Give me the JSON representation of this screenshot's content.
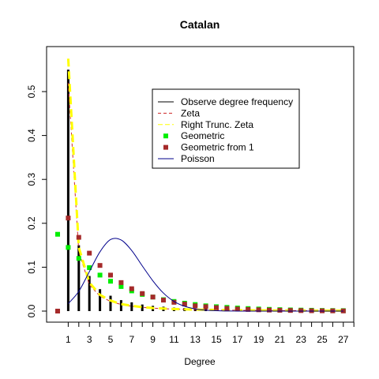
{
  "chart_data": {
    "type": "line",
    "title": "Catalan",
    "xlabel": "Degree",
    "ylabel": "",
    "xlim": [
      -1,
      28
    ],
    "ylim": [
      0,
      0.58
    ],
    "x_ticks": [
      1,
      2,
      3,
      4,
      5,
      6,
      7,
      8,
      9,
      10,
      11,
      12,
      13,
      14,
      15,
      16,
      17,
      18,
      19,
      20,
      21,
      22,
      23,
      24,
      25,
      26,
      27,
      28
    ],
    "x_tick_labels": [
      "1",
      "3",
      "5",
      "7",
      "9",
      "11",
      "13",
      "15",
      "17",
      "19",
      "21",
      "23",
      "25",
      "27"
    ],
    "y_ticks": [
      0.0,
      0.1,
      0.2,
      0.3,
      0.4,
      0.5
    ],
    "y_tick_labels": [
      "0.0",
      "0.1",
      "0.2",
      "0.3",
      "0.4",
      "0.5"
    ],
    "legend_position": "top-right",
    "legend": [
      "Observe degree frequency",
      "Zeta",
      "Right Trunc. Zeta",
      "Geometric",
      "Geometric from 1",
      "Poisson"
    ],
    "series": [
      {
        "name": "Observe degree frequency",
        "style": "histogram",
        "color": "#000000",
        "x": [
          1,
          2,
          3,
          4,
          5,
          6,
          7,
          8,
          9,
          10,
          11,
          12,
          13,
          14,
          15,
          16,
          17,
          18,
          19,
          20,
          21,
          22,
          23,
          24,
          25,
          26,
          27
        ],
        "values": [
          0.55,
          0.15,
          0.08,
          0.05,
          0.035,
          0.025,
          0.02,
          0.015,
          0.012,
          0.01,
          0.008,
          0.007,
          0.006,
          0.005,
          0.004,
          0.004,
          0.003,
          0.003,
          0.003,
          0.002,
          0.002,
          0.002,
          0.002,
          0.002,
          0.001,
          0.001,
          0.001
        ]
      },
      {
        "name": "Zeta",
        "style": "dashed-line",
        "color": "#cd2626",
        "x": [
          1,
          2,
          3,
          4,
          5,
          6,
          7,
          8,
          9,
          10,
          11,
          12,
          13,
          14,
          15,
          16,
          17,
          18,
          19,
          20,
          21,
          22,
          23,
          24,
          25,
          26,
          27
        ],
        "values": [
          0.52,
          0.135,
          0.06,
          0.034,
          0.022,
          0.015,
          0.011,
          0.0085,
          0.0067,
          0.0054,
          0.0045,
          0.0038,
          0.0032,
          0.0028,
          0.0024,
          0.0021,
          0.0019,
          0.0017,
          0.0015,
          0.0014,
          0.0012,
          0.0011,
          0.001,
          0.001,
          0.0009,
          0.0008,
          0.0008
        ]
      },
      {
        "name": "Right Trunc. Zeta",
        "style": "thick-dashed-line",
        "color": "#ffff00",
        "x": [
          1,
          2,
          3,
          4,
          5,
          6,
          7,
          8,
          9,
          10,
          11,
          12,
          13,
          14,
          15,
          16,
          17,
          18,
          19,
          20,
          21,
          22,
          23,
          24,
          25,
          26,
          27
        ],
        "values": [
          0.575,
          0.145,
          0.065,
          0.037,
          0.024,
          0.016,
          0.012,
          0.009,
          0.007,
          0.0058,
          0.0048,
          0.004,
          0.0034,
          0.003,
          0.0026,
          0.0023,
          0.002,
          0.0018,
          0.0016,
          0.0015,
          0.0013,
          0.0012,
          0.0011,
          0.001,
          0.001,
          0.0009,
          0.0008
        ]
      },
      {
        "name": "Geometric",
        "style": "points",
        "color": "#00ee00",
        "x": [
          0,
          1,
          2,
          3,
          4,
          5,
          6,
          7,
          8,
          9,
          10,
          11,
          12,
          13,
          14,
          15,
          16,
          17,
          18,
          19,
          20,
          21,
          22,
          23,
          24,
          25,
          26,
          27
        ],
        "values": [
          0.175,
          0.145,
          0.12,
          0.099,
          0.082,
          0.068,
          0.056,
          0.046,
          0.038,
          0.032,
          0.026,
          0.022,
          0.018,
          0.015,
          0.012,
          0.01,
          0.0085,
          0.007,
          0.0058,
          0.0048,
          0.004,
          0.0033,
          0.0027,
          0.0023,
          0.0019,
          0.0015,
          0.0013,
          0.0011
        ]
      },
      {
        "name": "Geometric from 1",
        "style": "points",
        "color": "#a52a2a",
        "x": [
          0,
          1,
          2,
          3,
          4,
          5,
          6,
          7,
          8,
          9,
          10,
          11,
          12,
          13,
          14,
          15,
          16,
          17,
          18,
          19,
          20,
          21,
          22,
          23,
          24,
          25,
          26,
          27
        ],
        "values": [
          0.0,
          0.212,
          0.168,
          0.132,
          0.104,
          0.082,
          0.065,
          0.051,
          0.04,
          0.032,
          0.025,
          0.02,
          0.016,
          0.012,
          0.01,
          0.0078,
          0.0061,
          0.0048,
          0.0038,
          0.003,
          0.0024,
          0.0019,
          0.0015,
          0.0012,
          0.0009,
          0.0007,
          0.0006,
          0.0004
        ]
      },
      {
        "name": "Poisson",
        "style": "line",
        "color": "#00008b",
        "x": [
          1,
          2,
          3,
          4,
          5,
          6,
          7,
          8,
          9,
          10,
          11,
          12,
          13,
          14,
          15,
          16,
          17,
          18,
          19,
          20,
          21,
          22,
          23,
          24,
          25,
          26,
          27
        ],
        "values": [
          0.017,
          0.045,
          0.09,
          0.135,
          0.163,
          0.162,
          0.138,
          0.103,
          0.069,
          0.041,
          0.022,
          0.011,
          0.005,
          0.002,
          0.001,
          0.0003,
          0.0001,
          0.0,
          0.0,
          0.0,
          0.0,
          0.0,
          0.0,
          0.0,
          0.0,
          0.0,
          0.0
        ]
      }
    ]
  }
}
